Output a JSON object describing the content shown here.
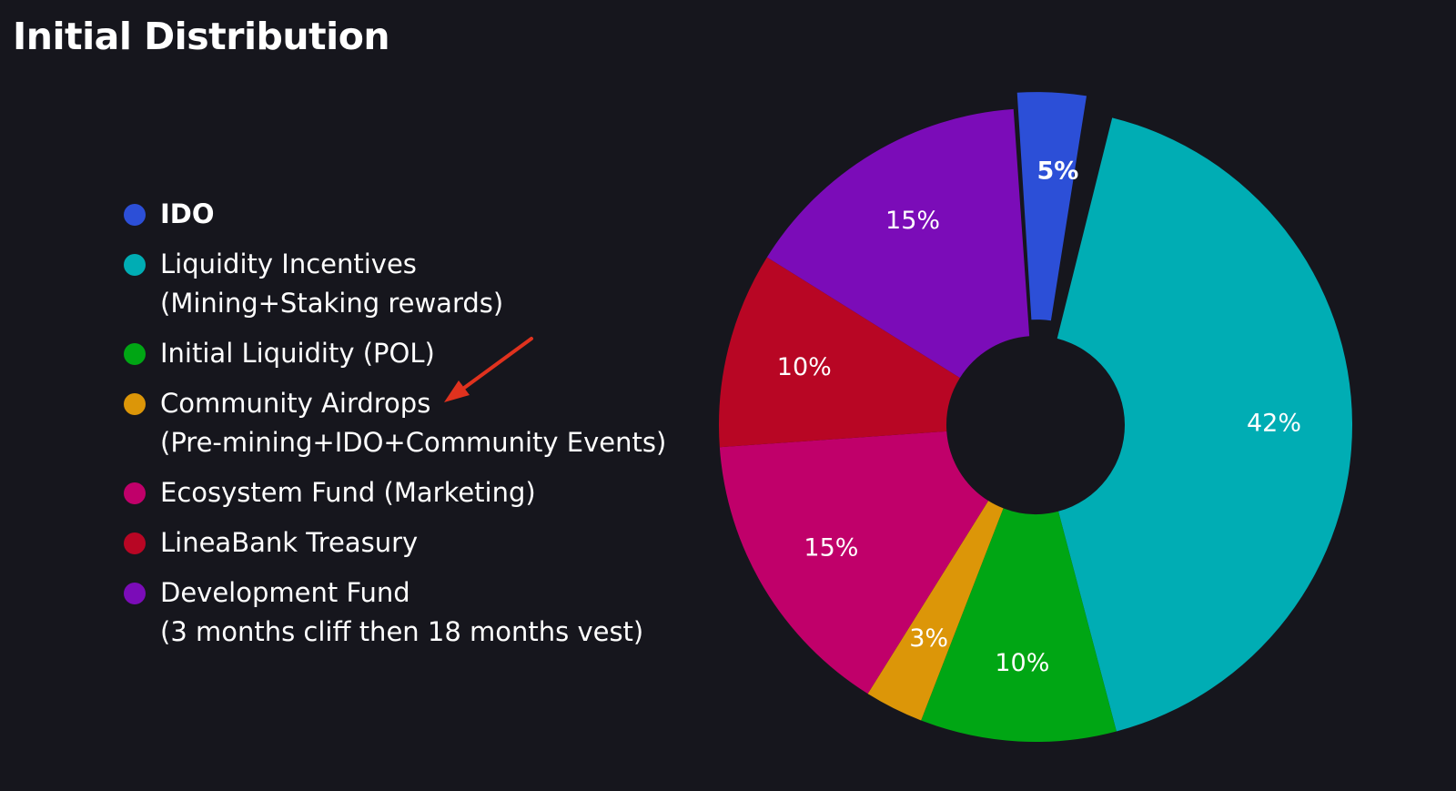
{
  "page": {
    "title": "Initial Distribution"
  },
  "chart_data": {
    "type": "pie",
    "style": "donut",
    "title": "Initial Distribution",
    "exploded": "IDO",
    "start_slice": "IDO",
    "direction": "clockwise",
    "legend_position": "left",
    "slices": [
      {
        "label": "IDO",
        "value": 5,
        "value_label": "5%",
        "color": "#2c4fd7",
        "bold": true
      },
      {
        "label": "Liquidity Incentives",
        "sublabel": "(Mining+Staking rewards)",
        "value": 42,
        "value_label": "42%",
        "color": "#00adb4"
      },
      {
        "label": "Initial Liquidity (POL)",
        "value": 10,
        "value_label": "10%",
        "color": "#00a614"
      },
      {
        "label": "Community Airdrops",
        "sublabel": "(Pre-mining+IDO+Community Events)",
        "value": 3,
        "value_label": "3%",
        "color": "#dc9608"
      },
      {
        "label": "Ecosystem Fund (Marketing)",
        "value": 15,
        "value_label": "15%",
        "color": "#c0006a"
      },
      {
        "label": "LineaBank Treasury",
        "value": 10,
        "value_label": "10%",
        "color": "#b80624"
      },
      {
        "label": "Development Fund",
        "sublabel": "(3 months cliff then 18 months vest)",
        "value": 15,
        "value_label": "15%",
        "color": "#7b0cb8"
      }
    ]
  },
  "annotation": {
    "type": "arrow",
    "points_to": "Community Airdrops",
    "color": "#e0321e"
  },
  "colors": {
    "background": "#16161d",
    "text": "#ffffff"
  }
}
